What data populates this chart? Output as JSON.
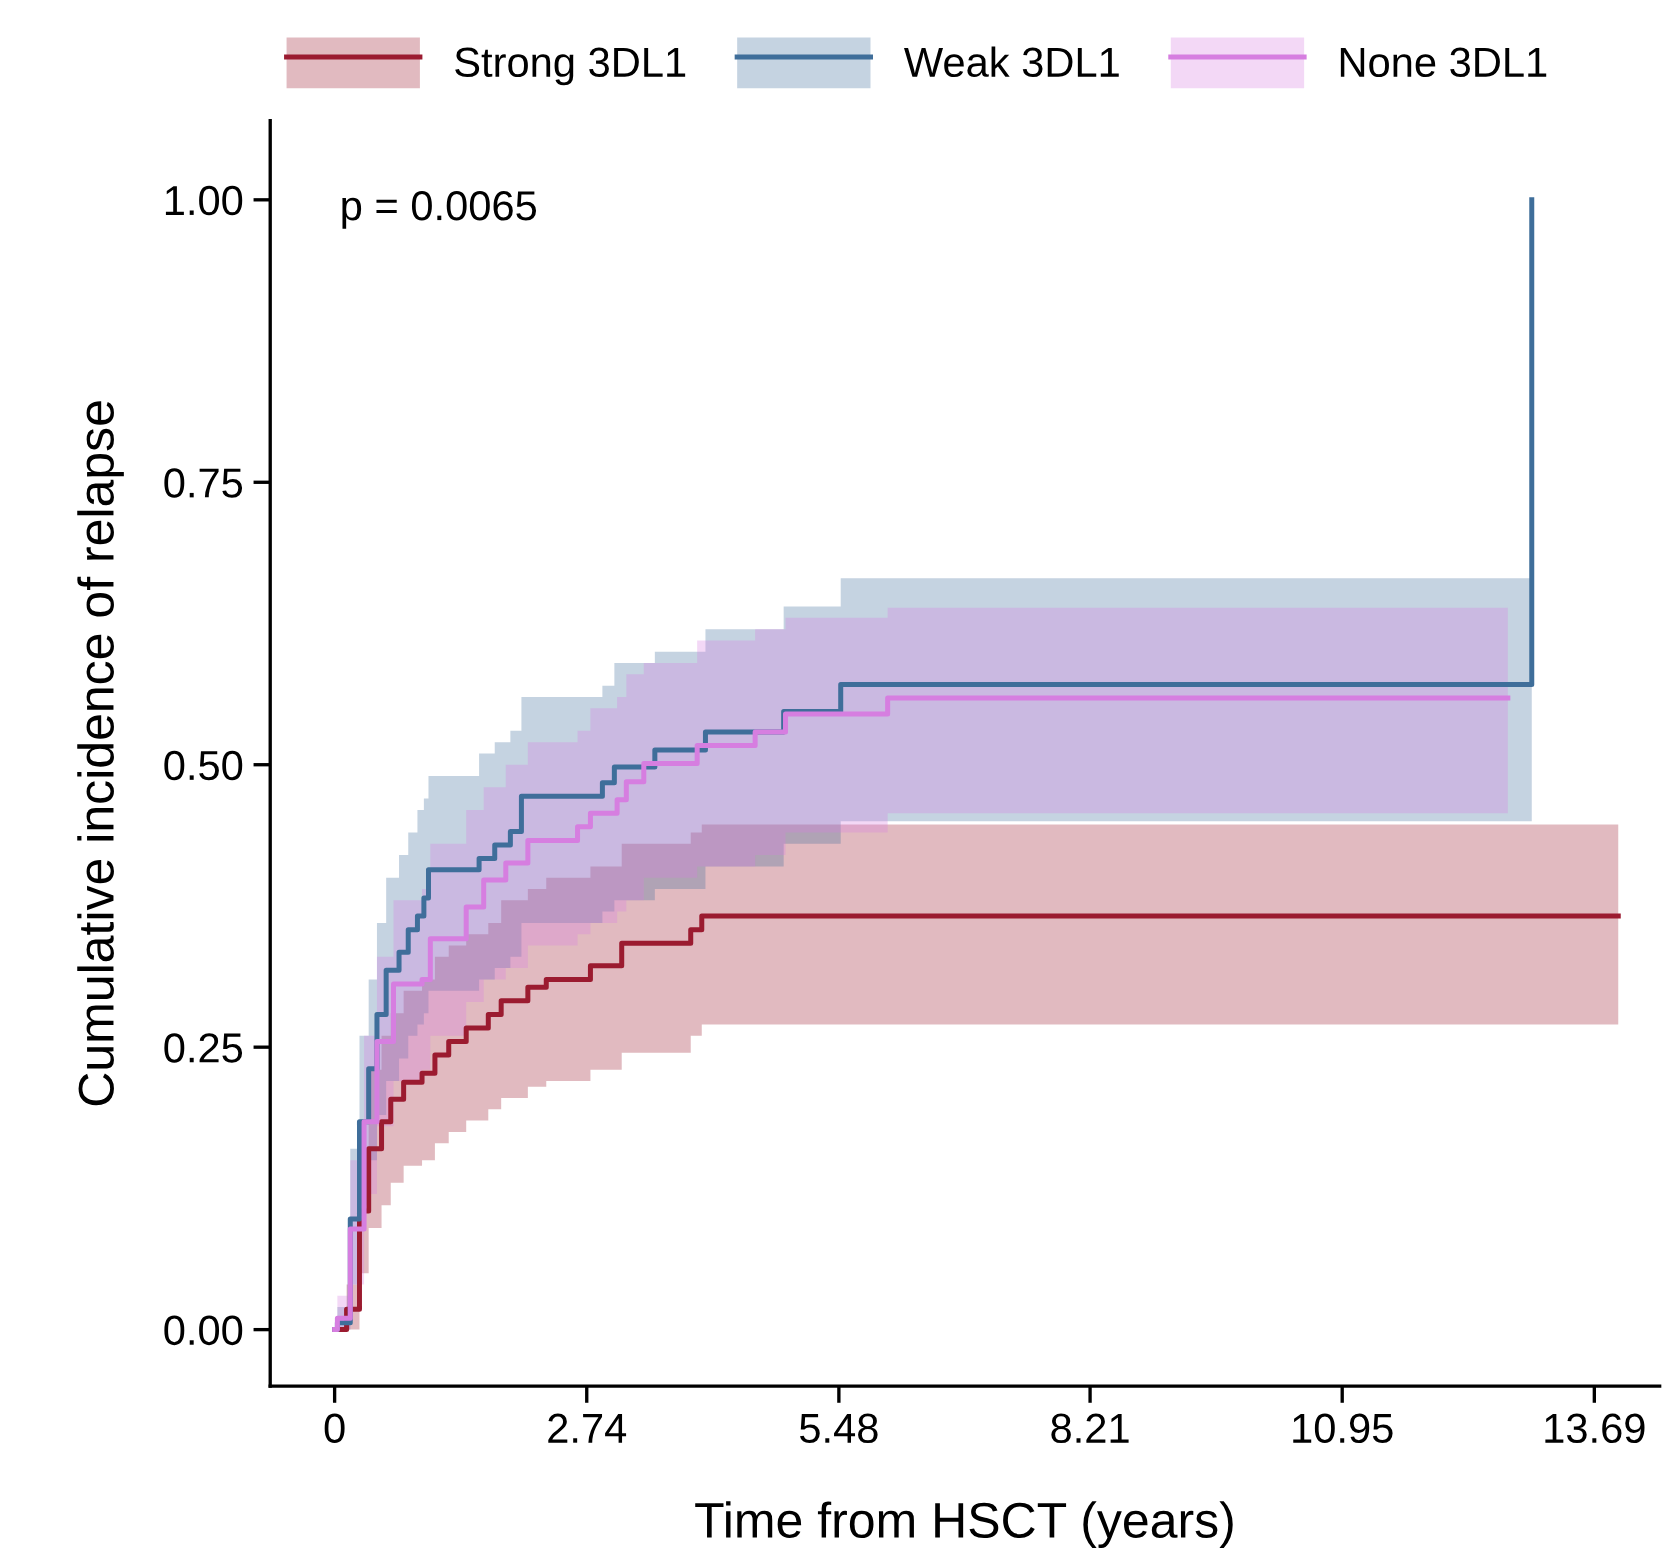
{
  "chart_data": {
    "type": "step",
    "xlabel": "Time from HSCT (years)",
    "ylabel": "Cumulative incidence of relapse",
    "annotations": [
      "p = 0.0065"
    ],
    "xlim": [
      -0.7,
      14.4
    ],
    "ylim": [
      -0.05,
      1.07
    ],
    "xticks": [
      0,
      2.74,
      5.48,
      8.21,
      10.95,
      13.69
    ],
    "yticks": [
      {
        "value": 0,
        "label": "0.00"
      },
      {
        "value": 0.25,
        "label": "0.25"
      },
      {
        "value": 0.5,
        "label": "0.50"
      },
      {
        "value": 0.75,
        "label": "0.75"
      },
      {
        "value": 1,
        "label": "1.00"
      }
    ],
    "grid": false,
    "legend": "top",
    "line_style": "solid",
    "series": [
      {
        "name": "Strong 3DL1",
        "color": "#9b1b30",
        "x": [
          0,
          0.13,
          0.27,
          0.37,
          0.51,
          0.61,
          0.75,
          0.95,
          1.09,
          1.24,
          1.43,
          1.67,
          1.81,
          2.1,
          2.3,
          2.78,
          3.12,
          3.87,
          3.99,
          13.95
        ],
        "values": [
          0,
          0.018,
          0.105,
          0.16,
          0.184,
          0.204,
          0.219,
          0.227,
          0.243,
          0.255,
          0.267,
          0.279,
          0.291,
          0.303,
          0.31,
          0.322,
          0.342,
          0.354,
          0.366,
          0.366
        ],
        "lower": [
          0,
          0,
          0.05,
          0.09,
          0.11,
          0.13,
          0.145,
          0.15,
          0.165,
          0.175,
          0.185,
          0.195,
          0.205,
          0.215,
          0.22,
          0.23,
          0.245,
          0.26,
          0.27,
          0.27
        ],
        "upper": [
          0,
          0.04,
          0.16,
          0.23,
          0.26,
          0.28,
          0.3,
          0.31,
          0.33,
          0.34,
          0.35,
          0.36,
          0.38,
          0.39,
          0.4,
          0.41,
          0.43,
          0.44,
          0.447,
          0.447
        ]
      },
      {
        "name": "Weak 3DL1",
        "color": "#3f6e9a",
        "x": [
          0,
          0.03,
          0.17,
          0.27,
          0.37,
          0.46,
          0.56,
          0.7,
          0.8,
          0.9,
          0.97,
          1.02,
          1.57,
          1.74,
          1.91,
          2.03,
          2.91,
          3.04,
          3.48,
          4.03,
          4.88,
          5.5,
          13.01,
          13.01
        ],
        "values": [
          0,
          0.006,
          0.098,
          0.184,
          0.231,
          0.279,
          0.318,
          0.334,
          0.354,
          0.366,
          0.382,
          0.407,
          0.417,
          0.429,
          0.441,
          0.472,
          0.484,
          0.498,
          0.513,
          0.529,
          0.547,
          0.571,
          0.571,
          1.0
        ],
        "lower": [
          0,
          0,
          0.04,
          0.11,
          0.15,
          0.19,
          0.22,
          0.24,
          0.26,
          0.27,
          0.28,
          0.3,
          0.31,
          0.32,
          0.33,
          0.36,
          0.37,
          0.38,
          0.39,
          0.41,
          0.43,
          0.45,
          0.45,
          null
        ],
        "upper": [
          0,
          0.02,
          0.16,
          0.26,
          0.31,
          0.36,
          0.4,
          0.42,
          0.44,
          0.46,
          0.47,
          0.49,
          0.51,
          0.52,
          0.53,
          0.56,
          0.57,
          0.59,
          0.6,
          0.62,
          0.64,
          0.665,
          0.665,
          null
        ]
      },
      {
        "name": "None 3DL1",
        "color": "#d67ee0",
        "x": [
          0,
          0.03,
          0.17,
          0.32,
          0.46,
          0.64,
          0.95,
          1.04,
          1.43,
          1.62,
          1.86,
          2.1,
          2.64,
          2.78,
          3.07,
          3.17,
          3.36,
          3.94,
          4.57,
          4.9,
          6.01,
          12.75
        ],
        "values": [
          0,
          0.01,
          0.089,
          0.184,
          0.255,
          0.306,
          0.31,
          0.346,
          0.374,
          0.398,
          0.413,
          0.433,
          0.445,
          0.457,
          0.469,
          0.485,
          0.501,
          0.517,
          0.529,
          0.545,
          0.559,
          0.559
        ],
        "lower": [
          0,
          0,
          0.04,
          0.12,
          0.18,
          0.22,
          0.23,
          0.26,
          0.29,
          0.31,
          0.32,
          0.34,
          0.35,
          0.36,
          0.37,
          0.38,
          0.4,
          0.41,
          0.42,
          0.44,
          0.457,
          0.457
        ],
        "upper": [
          0,
          0.03,
          0.15,
          0.26,
          0.33,
          0.38,
          0.39,
          0.43,
          0.46,
          0.48,
          0.5,
          0.52,
          0.53,
          0.55,
          0.56,
          0.58,
          0.59,
          0.61,
          0.62,
          0.63,
          0.639,
          0.639
        ]
      }
    ]
  }
}
